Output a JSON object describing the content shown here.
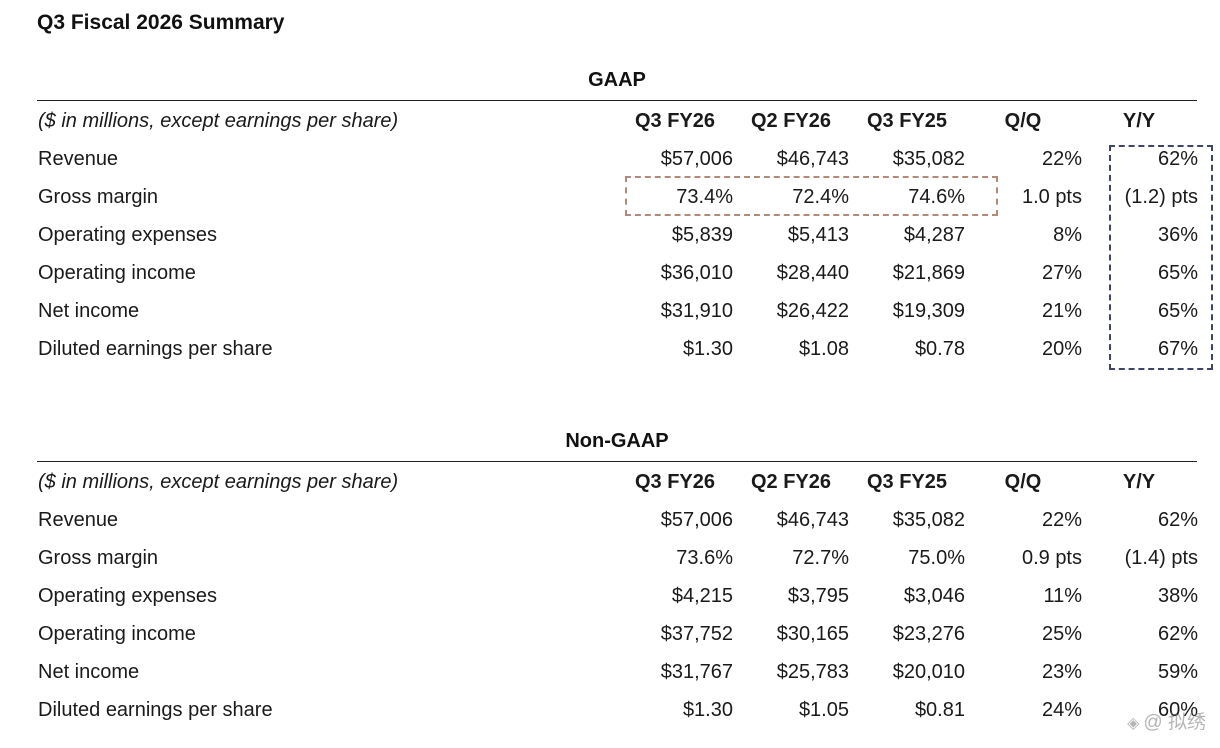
{
  "page_title": "Q3 Fiscal 2026 Summary",
  "watermark": {
    "icon": "diamond-logo-icon",
    "text": "@ 拟绣"
  },
  "sections": [
    {
      "title": "GAAP",
      "header": {
        "unit_label": "($ in millions, except earnings per share)",
        "columns": [
          "Q3 FY26",
          "Q2 FY26",
          "Q3 FY25",
          "Q/Q",
          "Y/Y"
        ]
      },
      "rows": [
        {
          "label": "Revenue",
          "values": [
            "$57,006",
            "$46,743",
            "$35,082",
            "22%",
            "62%"
          ]
        },
        {
          "label": "Gross margin",
          "values": [
            "73.4%",
            "72.4%",
            "74.6%",
            "1.0 pts",
            "(1.2) pts"
          ]
        },
        {
          "label": "Operating expenses",
          "values": [
            "$5,839",
            "$5,413",
            "$4,287",
            "8%",
            "36%"
          ]
        },
        {
          "label": "Operating income",
          "values": [
            "$36,010",
            "$28,440",
            "$21,869",
            "27%",
            "65%"
          ]
        },
        {
          "label": "Net income",
          "values": [
            "$31,910",
            "$26,422",
            "$19,309",
            "21%",
            "65%"
          ]
        },
        {
          "label": "Diluted earnings per share",
          "values": [
            "$1.30",
            "$1.08",
            "$0.78",
            "20%",
            "67%"
          ]
        }
      ]
    },
    {
      "title": "Non-GAAP",
      "header": {
        "unit_label": "($ in millions, except earnings per share)",
        "columns": [
          "Q3 FY26",
          "Q2 FY26",
          "Q3 FY25",
          "Q/Q",
          "Y/Y"
        ]
      },
      "rows": [
        {
          "label": "Revenue",
          "values": [
            "$57,006",
            "$46,743",
            "$35,082",
            "22%",
            "62%"
          ]
        },
        {
          "label": "Gross margin",
          "values": [
            "73.6%",
            "72.7%",
            "75.0%",
            "0.9 pts",
            "(1.4) pts"
          ]
        },
        {
          "label": "Operating expenses",
          "values": [
            "$4,215",
            "$3,795",
            "$3,046",
            "11%",
            "38%"
          ]
        },
        {
          "label": "Operating income",
          "values": [
            "$37,752",
            "$30,165",
            "$23,276",
            "25%",
            "62%"
          ]
        },
        {
          "label": "Net income",
          "values": [
            "$31,767",
            "$25,783",
            "$20,010",
            "23%",
            "59%"
          ]
        },
        {
          "label": "Diluted earnings per share",
          "values": [
            "$1.30",
            "$1.05",
            "$0.81",
            "24%",
            "60%"
          ]
        }
      ]
    }
  ]
}
